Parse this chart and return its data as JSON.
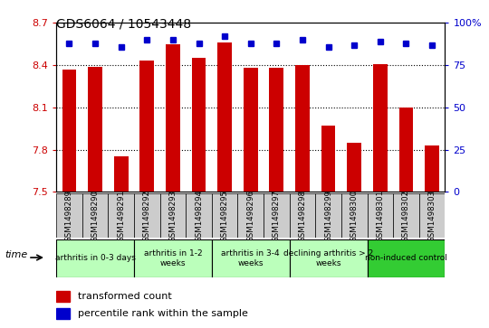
{
  "title": "GDS6064 / 10543448",
  "samples": [
    "GSM1498289",
    "GSM1498290",
    "GSM1498291",
    "GSM1498292",
    "GSM1498293",
    "GSM1498294",
    "GSM1498295",
    "GSM1498296",
    "GSM1498297",
    "GSM1498298",
    "GSM1498299",
    "GSM1498300",
    "GSM1498301",
    "GSM1498302",
    "GSM1498303"
  ],
  "bar_values": [
    8.37,
    8.39,
    7.75,
    8.43,
    8.55,
    8.45,
    8.56,
    8.38,
    8.38,
    8.4,
    7.97,
    7.85,
    8.41,
    8.1,
    7.83
  ],
  "percentile_values": [
    88,
    88,
    86,
    90,
    90,
    88,
    92,
    88,
    88,
    90,
    86,
    87,
    89,
    88,
    87
  ],
  "ylim_left": [
    7.5,
    8.7
  ],
  "ylim_right": [
    0,
    100
  ],
  "yticks_left": [
    7.5,
    7.8,
    8.1,
    8.4,
    8.7
  ],
  "yticks_right": [
    0,
    25,
    50,
    75,
    100
  ],
  "bar_color": "#cc0000",
  "dot_color": "#0000cc",
  "groups_info": [
    {
      "label": "arthritis in 0-3 days",
      "start": 0,
      "end": 3,
      "color": "#bbffbb"
    },
    {
      "label": "arthritis in 1-2\nweeks",
      "start": 3,
      "end": 6,
      "color": "#bbffbb"
    },
    {
      "label": "arthritis in 3-4\nweeks",
      "start": 6,
      "end": 9,
      "color": "#bbffbb"
    },
    {
      "label": "declining arthritis > 2\nweeks",
      "start": 9,
      "end": 12,
      "color": "#bbffbb"
    },
    {
      "label": "non-induced control",
      "start": 12,
      "end": 15,
      "color": "#33cc33"
    }
  ],
  "legend_bar_label": "transformed count",
  "legend_dot_label": "percentile rank within the sample",
  "background_color": "#ffffff",
  "tick_label_color_left": "#cc0000",
  "tick_label_color_right": "#0000cc",
  "sample_bg_color": "#cccccc",
  "grid_yticks": [
    7.8,
    8.1,
    8.4
  ]
}
